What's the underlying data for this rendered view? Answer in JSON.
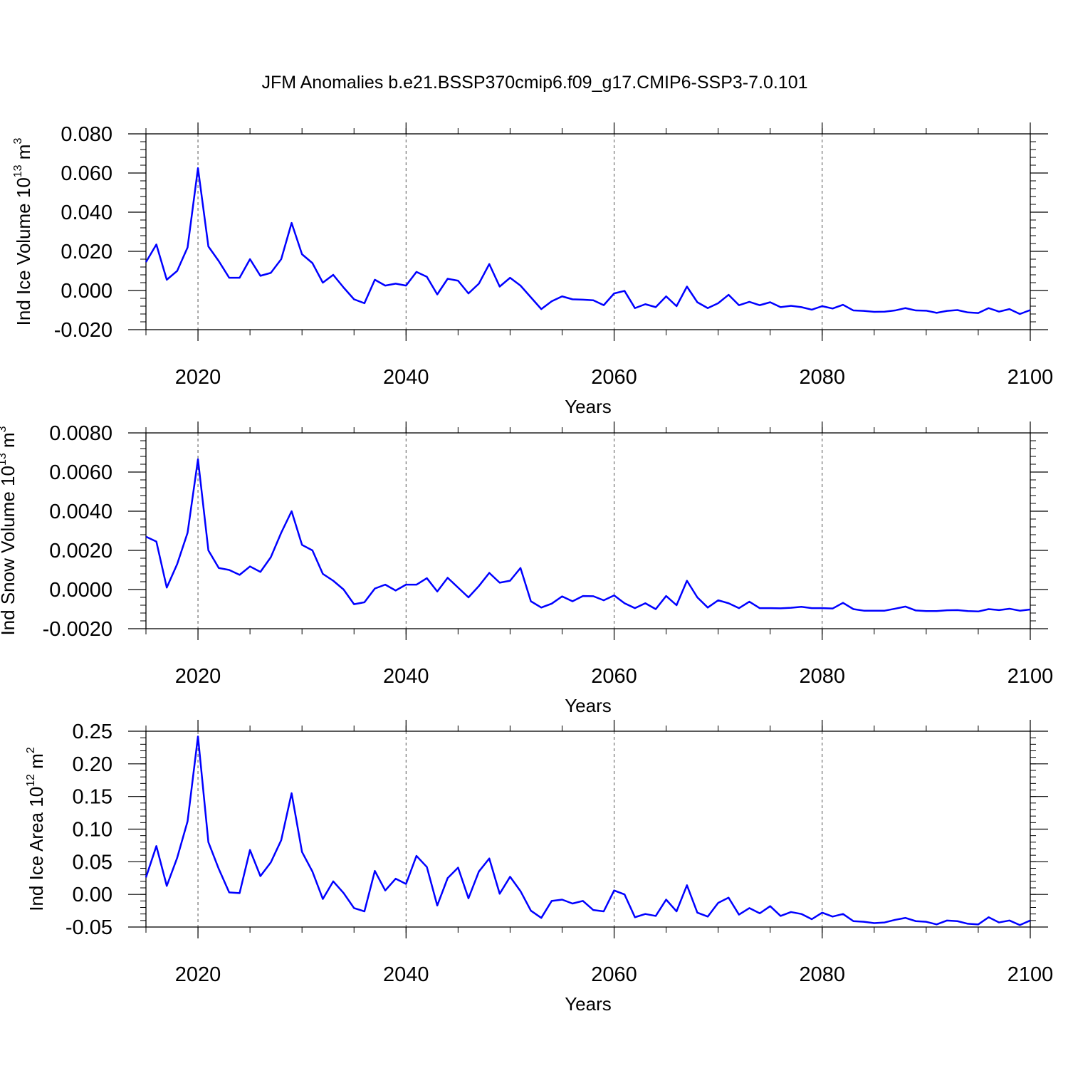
{
  "title": "JFM Anomalies b.e21.BSSP370cmip6.f09_g17.CMIP6-SSP3-7.0.101",
  "colors": {
    "line": "#0000ff",
    "axis": "#000000",
    "grid": "#555555"
  },
  "chart_data": [
    {
      "type": "line",
      "ylabel": {
        "text": "Ind Ice Volume 10",
        "exp": "13",
        "unit": " m",
        "unit_exp": "3"
      },
      "xlabel": "Years",
      "xlim": [
        2015,
        2100
      ],
      "ylim": [
        -0.02,
        0.08
      ],
      "yticks": [
        -0.02,
        0.0,
        0.02,
        0.04,
        0.06,
        0.08
      ],
      "ytick_labels": [
        "-0.020",
        "0.000",
        "0.020",
        "0.040",
        "0.060",
        "0.080"
      ],
      "xticks": [
        2020,
        2040,
        2060,
        2080,
        2100
      ],
      "xtick_labels": [
        "2020",
        "2040",
        "2060",
        "2080",
        "2100"
      ],
      "grid_x": [
        2020,
        2040,
        2060,
        2080
      ],
      "x_start": 2015,
      "values": [
        0.0145,
        0.0235,
        0.0055,
        0.01,
        0.022,
        0.0625,
        0.0225,
        0.015,
        0.0065,
        0.0065,
        0.016,
        0.0075,
        0.009,
        0.016,
        0.0345,
        0.0185,
        0.014,
        0.004,
        0.008,
        0.0015,
        -0.0045,
        -0.0065,
        0.0055,
        0.0025,
        0.0035,
        0.0025,
        0.0095,
        0.007,
        -0.002,
        0.006,
        0.005,
        -0.0015,
        0.0035,
        0.0135,
        0.002,
        0.0065,
        0.0025,
        -0.0035,
        -0.0095,
        -0.0055,
        -0.003,
        -0.0045,
        -0.0047,
        -0.005,
        -0.0075,
        -0.0015,
        -0.0002,
        -0.009,
        -0.007,
        -0.0085,
        -0.003,
        -0.008,
        0.002,
        -0.006,
        -0.009,
        -0.0065,
        -0.0022,
        -0.0075,
        -0.0058,
        -0.0075,
        -0.006,
        -0.0085,
        -0.0078,
        -0.0085,
        -0.0098,
        -0.008,
        -0.0092,
        -0.0073,
        -0.0102,
        -0.0104,
        -0.0109,
        -0.0108,
        -0.0102,
        -0.009,
        -0.0102,
        -0.0103,
        -0.0114,
        -0.0104,
        -0.01,
        -0.0112,
        -0.0115,
        -0.009,
        -0.0108,
        -0.0095,
        -0.012,
        -0.01
      ]
    },
    {
      "type": "line",
      "ylabel": {
        "text": "Ind Snow Volume 10",
        "exp": "13",
        "unit": " m",
        "unit_exp": "3"
      },
      "xlabel": "Years",
      "xlim": [
        2015,
        2100
      ],
      "ylim": [
        -0.002,
        0.008
      ],
      "yticks": [
        -0.002,
        0.0,
        0.002,
        0.004,
        0.006,
        0.008
      ],
      "ytick_labels": [
        "-0.0020",
        "0.0000",
        "0.0020",
        "0.0040",
        "0.0060",
        "0.0080"
      ],
      "xticks": [
        2020,
        2040,
        2060,
        2080,
        2100
      ],
      "xtick_labels": [
        "2020",
        "2040",
        "2060",
        "2080",
        "2100"
      ],
      "grid_x": [
        2020,
        2040,
        2060,
        2080
      ],
      "x_start": 2015,
      "values": [
        0.0027,
        0.00245,
        0.0001,
        0.0013,
        0.0029,
        0.00665,
        0.002,
        0.0011,
        0.001,
        0.00075,
        0.00118,
        0.0009,
        0.00165,
        0.0029,
        0.004,
        0.00228,
        0.002,
        0.0008,
        0.00045,
        0.0,
        -0.00075,
        -0.00065,
        5e-05,
        0.00025,
        -5e-05,
        0.00025,
        0.00025,
        0.00058,
        -0.0001,
        0.0006,
        0.0001,
        -0.0004,
        0.00018,
        0.00085,
        0.00035,
        0.00045,
        0.0011,
        -0.0006,
        -0.00092,
        -0.00072,
        -0.00035,
        -0.0006,
        -0.00033,
        -0.00034,
        -0.00055,
        -0.0003,
        -0.0007,
        -0.00095,
        -0.0007,
        -0.001,
        -0.00033,
        -0.0008,
        0.00045,
        -0.0004,
        -0.00092,
        -0.00055,
        -0.0007,
        -0.00095,
        -0.00062,
        -0.00095,
        -0.00095,
        -0.00096,
        -0.00093,
        -0.00088,
        -0.00095,
        -0.00095,
        -0.00097,
        -0.00068,
        -0.001,
        -0.00108,
        -0.00108,
        -0.00108,
        -0.00098,
        -0.00087,
        -0.00107,
        -0.0011,
        -0.0011,
        -0.00106,
        -0.00105,
        -0.0011,
        -0.00112,
        -0.001,
        -0.00105,
        -0.00098,
        -0.00108,
        -0.00102
      ]
    },
    {
      "type": "line",
      "ylabel": {
        "text": "Ind Ice Area 10",
        "exp": "12",
        "unit": " m",
        "unit_exp": "2"
      },
      "xlabel": "Years",
      "xlim": [
        2015,
        2100
      ],
      "ylim": [
        -0.05,
        0.25
      ],
      "yticks": [
        -0.05,
        0.0,
        0.05,
        0.1,
        0.15,
        0.2,
        0.25
      ],
      "ytick_labels": [
        "-0.05",
        "0.00",
        "0.05",
        "0.10",
        "0.15",
        "0.20",
        "0.25"
      ],
      "xticks": [
        2020,
        2040,
        2060,
        2080,
        2100
      ],
      "xtick_labels": [
        "2020",
        "2040",
        "2060",
        "2080",
        "2100"
      ],
      "grid_x": [
        2020,
        2040,
        2060,
        2080
      ],
      "x_start": 2015,
      "values": [
        0.026,
        0.074,
        0.013,
        0.056,
        0.112,
        0.242,
        0.08,
        0.039,
        0.003,
        0.002,
        0.068,
        0.028,
        0.049,
        0.083,
        0.155,
        0.065,
        0.035,
        -0.007,
        0.02,
        0.002,
        -0.021,
        -0.026,
        0.036,
        0.006,
        0.024,
        0.016,
        0.059,
        0.042,
        -0.017,
        0.025,
        0.041,
        -0.006,
        0.035,
        0.055,
        0.001,
        0.027,
        0.005,
        -0.025,
        -0.036,
        -0.01,
        -0.008,
        -0.014,
        -0.01,
        -0.024,
        -0.026,
        0.006,
        0.0,
        -0.035,
        -0.03,
        -0.033,
        -0.008,
        -0.026,
        0.014,
        -0.028,
        -0.034,
        -0.013,
        -0.005,
        -0.031,
        -0.021,
        -0.029,
        -0.018,
        -0.033,
        -0.027,
        -0.03,
        -0.038,
        -0.028,
        -0.034,
        -0.03,
        -0.041,
        -0.042,
        -0.044,
        -0.043,
        -0.039,
        -0.036,
        -0.041,
        -0.042,
        -0.046,
        -0.04,
        -0.041,
        -0.045,
        -0.046,
        -0.035,
        -0.043,
        -0.04,
        -0.047,
        -0.04
      ]
    }
  ]
}
